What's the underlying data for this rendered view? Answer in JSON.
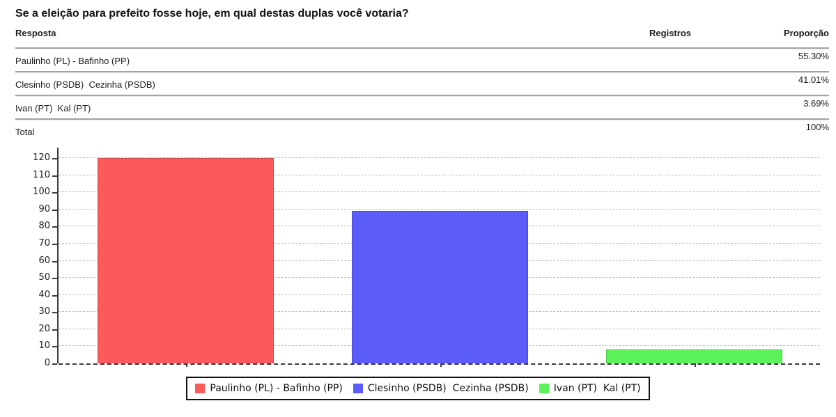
{
  "question": {
    "title": "Se a eleição para prefeito fosse hoje, em qual destas duplas você votaria?"
  },
  "table": {
    "headers": {
      "resposta": "Resposta",
      "registros": "Registros",
      "proporcao": "Proporção"
    },
    "rows": [
      {
        "resposta": "Paulinho (PL) - Bafinho (PP)",
        "registros": "",
        "proporcao": "55.30%"
      },
      {
        "resposta": "Clesinho (PSDB)  Cezinha (PSDB)",
        "registros": "",
        "proporcao": "41.01%"
      },
      {
        "resposta": "Ivan (PT)  Kal (PT)",
        "registros": "",
        "proporcao": "3.69%"
      },
      {
        "resposta": "Total",
        "registros": "",
        "proporcao": "100%"
      }
    ]
  },
  "chart_data": {
    "type": "bar",
    "title": "",
    "categories": [
      "Paulinho (PL) - Bafinho (PP)",
      "Clesinho (PSDB)  Cezinha (PSDB)",
      "Ivan (PT)  Kal (PT)"
    ],
    "values": [
      120,
      89,
      8
    ],
    "colors": [
      "#FA5A5A",
      "#5C5CFA",
      "#5BF25B"
    ],
    "xlabel": "",
    "ylabel": "",
    "ylim": [
      0,
      120
    ],
    "ytick_step": 10,
    "grid": true,
    "gridline_color": "#bcbcbc",
    "axis_color": "#3a3a3a",
    "legend_position": "bottom"
  }
}
